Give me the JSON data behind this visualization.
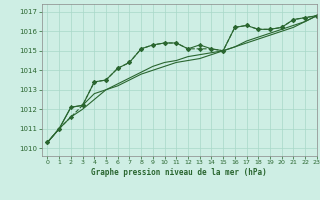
{
  "xlabel": "Graphe pression niveau de la mer (hPa)",
  "ylabel": "",
  "bg_color": "#ceeee4",
  "grid_color": "#a8d8c8",
  "line_color": "#2a6630",
  "xlim": [
    -0.5,
    23
  ],
  "ylim": [
    1009.6,
    1017.4
  ],
  "yticks": [
    1010,
    1011,
    1012,
    1013,
    1014,
    1015,
    1016,
    1017
  ],
  "xticks": [
    0,
    1,
    2,
    3,
    4,
    5,
    6,
    7,
    8,
    9,
    10,
    11,
    12,
    13,
    14,
    15,
    16,
    17,
    18,
    19,
    20,
    21,
    22,
    23
  ],
  "series": [
    [
      1010.3,
      1011.0,
      1011.6,
      1012.2,
      1013.4,
      1013.5,
      1014.1,
      1014.4,
      1015.1,
      1015.3,
      1015.4,
      1015.4,
      1015.1,
      1015.1,
      1015.1,
      1015.0,
      1016.2,
      1016.3,
      1016.1,
      1016.1,
      1016.2,
      1016.6,
      1016.7,
      1016.8
    ],
    [
      1010.3,
      1011.0,
      1011.6,
      1012.0,
      1012.5,
      1013.0,
      1013.2,
      1013.5,
      1013.8,
      1014.0,
      1014.2,
      1014.4,
      1014.5,
      1014.6,
      1014.8,
      1015.0,
      1015.2,
      1015.4,
      1015.6,
      1015.8,
      1016.0,
      1016.2,
      1016.5,
      1016.8
    ],
    [
      1010.3,
      1011.0,
      1012.1,
      1012.2,
      1012.8,
      1013.0,
      1013.3,
      1013.6,
      1013.9,
      1014.2,
      1014.4,
      1014.5,
      1014.7,
      1014.8,
      1014.9,
      1015.0,
      1015.2,
      1015.5,
      1015.7,
      1015.9,
      1016.1,
      1016.3,
      1016.5,
      1016.8
    ],
    [
      1010.3,
      1011.0,
      1012.1,
      1012.2,
      1013.4,
      1013.5,
      1014.1,
      1014.4,
      1015.1,
      1015.3,
      1015.4,
      1015.4,
      1015.1,
      1015.3,
      1015.1,
      1015.0,
      1016.2,
      1016.3,
      1016.1,
      1016.1,
      1016.2,
      1016.6,
      1016.7,
      1016.8
    ]
  ],
  "marker_series": [
    0,
    3
  ],
  "no_marker_series": [
    1,
    2
  ]
}
